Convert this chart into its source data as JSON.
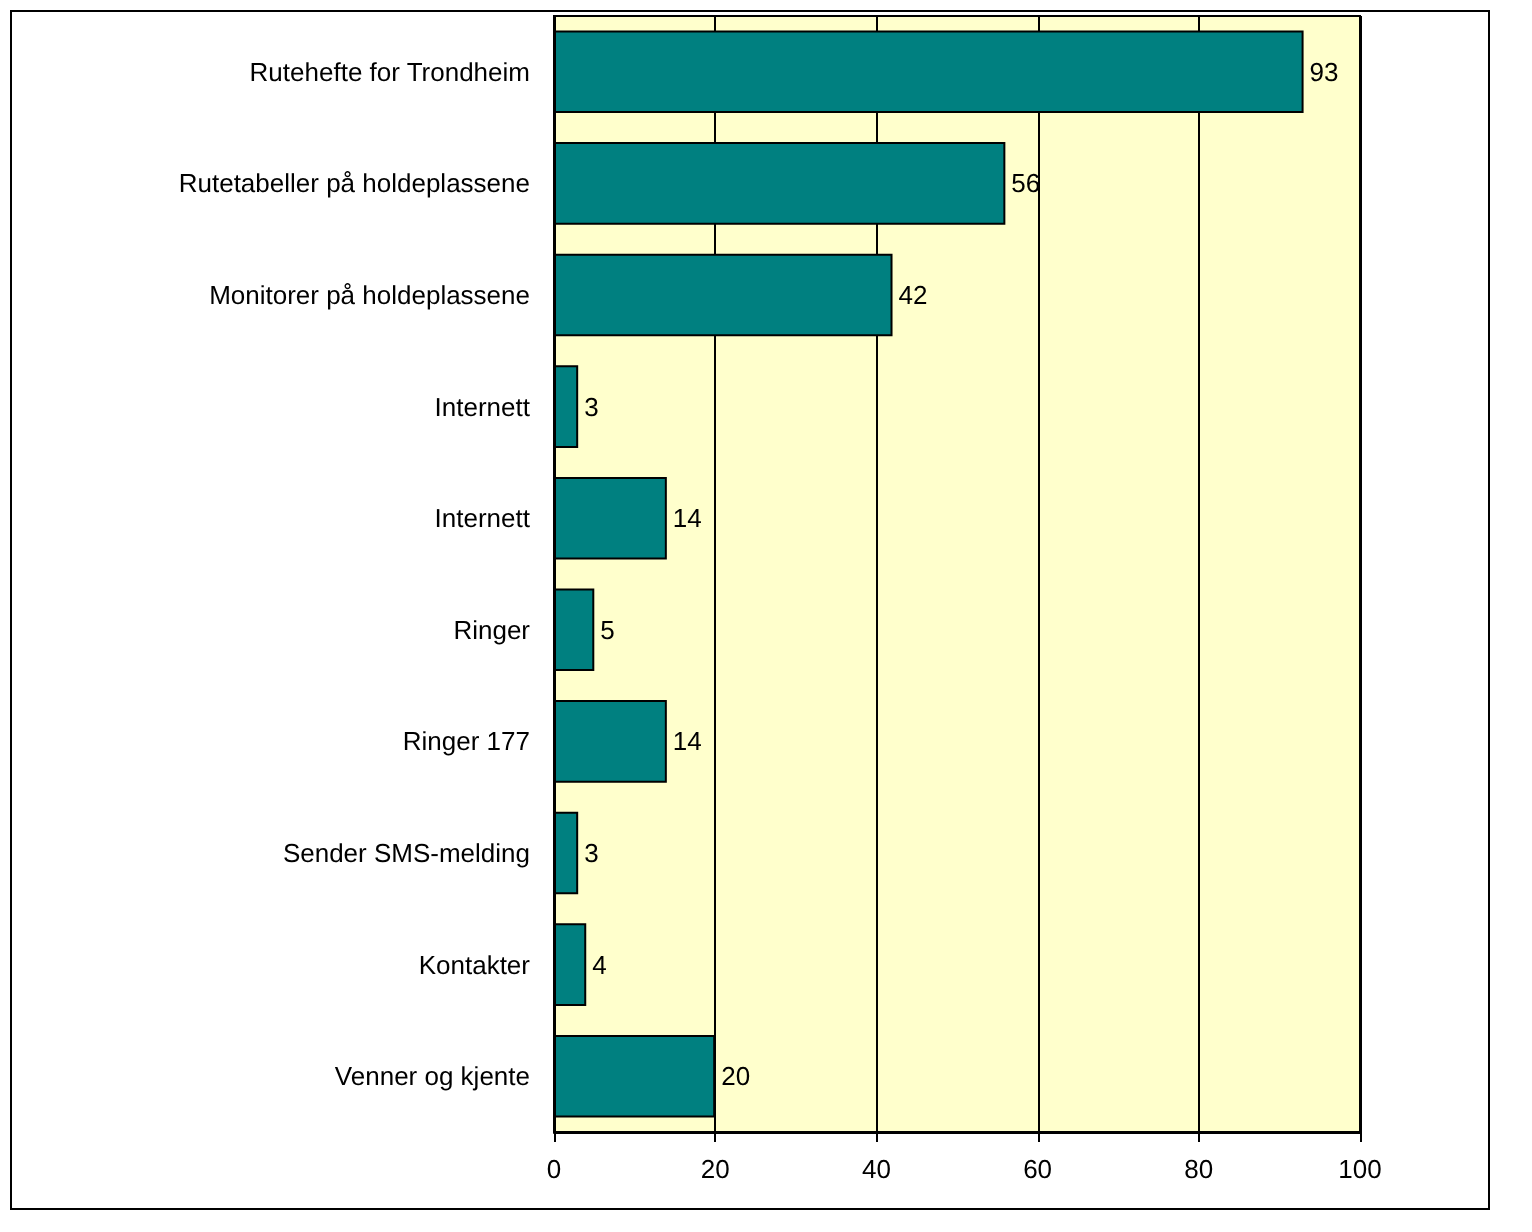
{
  "chart_data": {
    "type": "bar",
    "orientation": "horizontal",
    "categories": [
      "Rutehefte for Trondheim",
      "Rutetabeller på holdeplassene",
      "Monitorer på holdeplassene",
      "Internett",
      "Internett",
      "Ringer",
      "Ringer 177",
      "Sender SMS-melding",
      "Kontakter",
      "Venner og kjente"
    ],
    "values": [
      93,
      56,
      42,
      3,
      14,
      5,
      14,
      3,
      4,
      20
    ],
    "color": "#008080",
    "xlim": [
      0,
      100
    ],
    "xticks": [
      0,
      20,
      40,
      60,
      80,
      100
    ],
    "grid": "x",
    "data_labels": true
  }
}
